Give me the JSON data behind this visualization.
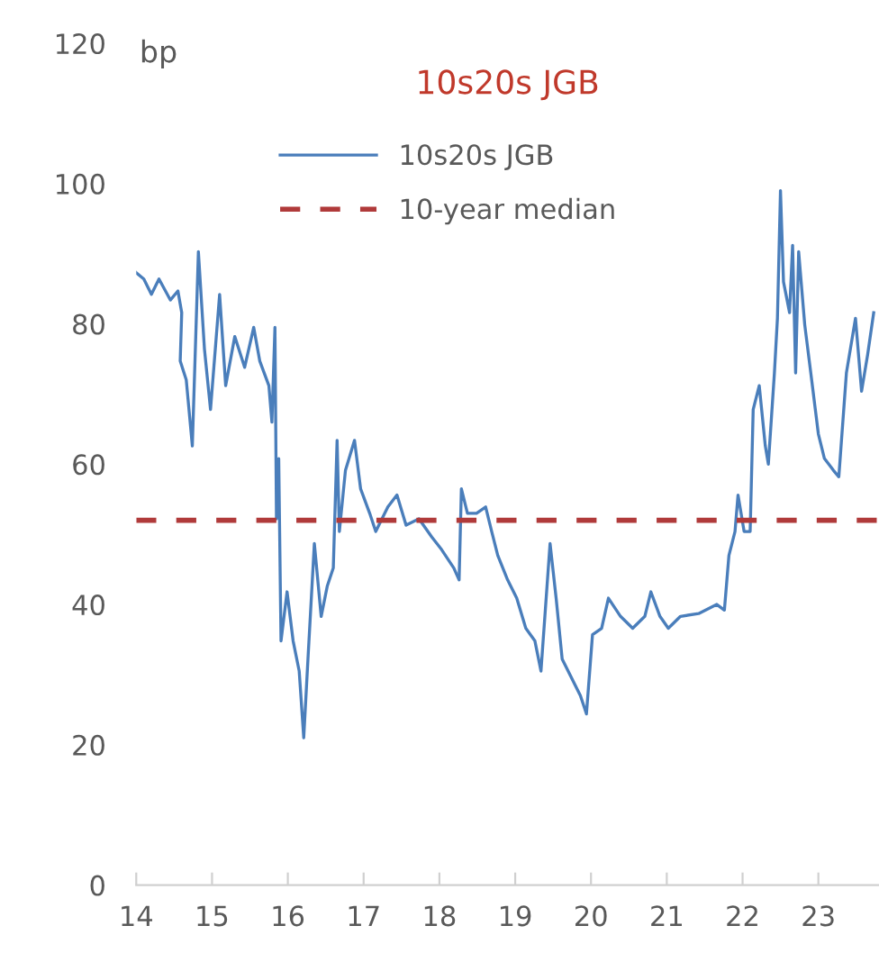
{
  "chart_data": {
    "type": "line",
    "title": "10s20s JGB",
    "ylabel": "bp",
    "xlim": [
      14,
      23.8
    ],
    "xticks": [
      14,
      15,
      16,
      17,
      18,
      19,
      20,
      21,
      22,
      23
    ],
    "ylim": [
      0,
      120
    ],
    "yticks": [
      0,
      20,
      40,
      60,
      80,
      100,
      120
    ],
    "grid": false,
    "legend": "top",
    "marker": "none",
    "line_style": "solid",
    "series": [
      {
        "name": "10s20s JGB",
        "color": "#4a7ebb",
        "x": [
          14.0,
          14.1,
          14.2,
          14.3,
          14.45,
          14.55,
          14.6,
          14.58,
          14.66,
          14.74,
          14.82,
          14.9,
          14.98,
          15.1,
          15.18,
          15.3,
          15.43,
          15.55,
          15.63,
          15.75,
          15.79,
          15.83,
          15.85,
          15.88,
          15.91,
          15.99,
          16.07,
          16.15,
          16.21,
          16.27,
          16.35,
          16.44,
          16.52,
          16.6,
          16.65,
          16.68,
          16.76,
          16.88,
          16.96,
          17.08,
          17.16,
          17.32,
          17.44,
          17.56,
          17.73,
          17.9,
          18.03,
          18.19,
          18.26,
          18.29,
          18.37,
          18.49,
          18.61,
          18.69,
          18.77,
          18.9,
          19.02,
          19.14,
          19.26,
          19.34,
          19.46,
          19.54,
          19.62,
          19.74,
          19.86,
          19.94,
          20.02,
          20.14,
          20.23,
          20.39,
          20.55,
          20.71,
          20.79,
          20.91,
          21.02,
          21.18,
          21.42,
          21.66,
          21.76,
          21.82,
          21.9,
          21.94,
          22.02,
          22.1,
          22.14,
          22.22,
          22.3,
          22.34,
          22.42,
          22.46,
          22.5,
          22.54,
          22.62,
          22.66,
          22.7,
          22.74,
          22.82,
          22.9,
          23.0,
          23.08,
          23.2,
          23.27,
          23.37,
          23.49,
          23.57,
          23.65,
          23.73
        ],
        "values": [
          87.3,
          86.4,
          84.2,
          86.4,
          83.4,
          84.7,
          81.6,
          74.7,
          72,
          62.6,
          90.3,
          76.4,
          67.8,
          84.2,
          71.2,
          78.2,
          73.8,
          79.5,
          74.7,
          71.2,
          66,
          79.5,
          52.2,
          60.8,
          34.8,
          41.8,
          34.8,
          30.5,
          21,
          33.1,
          48.7,
          38.3,
          42.6,
          45.2,
          63.4,
          50.4,
          59.1,
          63.4,
          56.5,
          53,
          50.4,
          53.9,
          55.6,
          51.3,
          52.2,
          49.6,
          47.8,
          45.2,
          43.5,
          56.5,
          53,
          53,
          53.9,
          50.4,
          47,
          43.5,
          40.9,
          36.6,
          34.8,
          30.5,
          48.7,
          40.9,
          32.2,
          29.6,
          27,
          24.4,
          35.7,
          36.6,
          40.9,
          38.3,
          36.6,
          38.3,
          41.8,
          38.3,
          36.6,
          38.3,
          38.7,
          40,
          39.2,
          47,
          50.4,
          55.6,
          50.4,
          50.4,
          67.8,
          71.2,
          62.6,
          60,
          73,
          80.8,
          99,
          86,
          81.6,
          91.2,
          73,
          90.3,
          79.9,
          73,
          64.3,
          60.8,
          59.1,
          58.2,
          73,
          80.8,
          70.4,
          75.6,
          81.6
        ]
      }
    ],
    "ref_lines": [
      {
        "axis": "y",
        "value": 52,
        "label": "10-year median",
        "color": "#b03a3a",
        "line_style": "dashed"
      }
    ]
  }
}
